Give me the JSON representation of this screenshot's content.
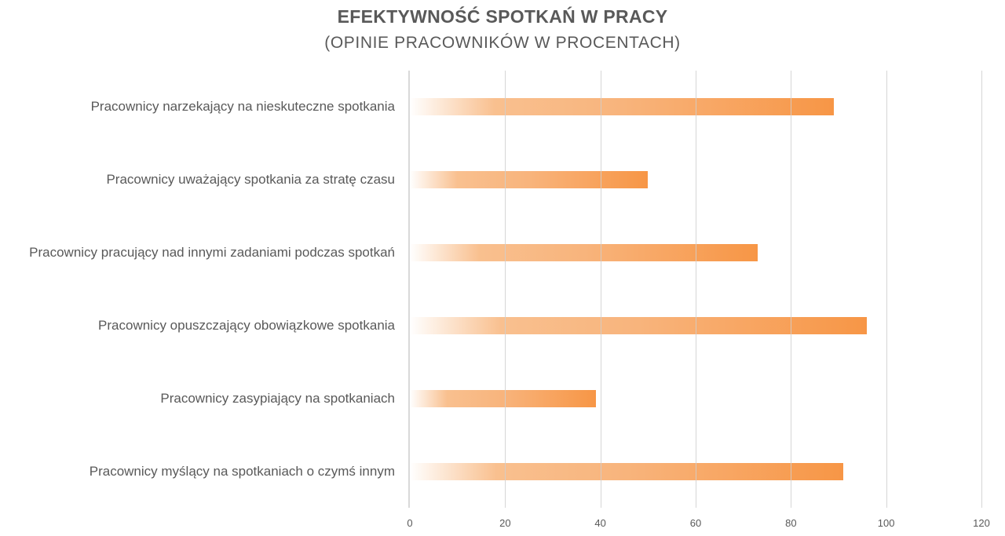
{
  "chart_data": {
    "type": "bar",
    "orientation": "horizontal",
    "title": "EFEKTYWNOŚĆ SPOTKAŃ W PRACY",
    "subtitle": "(OPINIE PRACOWNIKÓW W PROCENTACH)",
    "xlabel": "",
    "ylabel": "",
    "categories": [
      "Pracownicy narzekający na nieskuteczne spotkania",
      "Pracownicy uważający spotkania za stratę czasu",
      "Pracownicy pracujący nad innymi zadaniami podczas spotkań",
      "Pracownicy opuszczający obowiązkowe spotkania",
      "Pracownicy zasypiający na spotkaniach",
      "Pracownicy myślący na spotkaniach o czymś innym"
    ],
    "values": [
      89,
      50,
      73,
      96,
      39,
      91
    ],
    "xlim": [
      0,
      120
    ],
    "xticks": [
      "0",
      "20",
      "40",
      "60",
      "80",
      "100",
      "120"
    ],
    "grid": true,
    "legend": null,
    "colors": {
      "bar_start": "#ffffff",
      "bar_mid": "#f9c08f",
      "bar_end": "#f79646",
      "text": "#595959",
      "gridline": "#cfcfcf",
      "axis": "#d9d9d9"
    }
  }
}
